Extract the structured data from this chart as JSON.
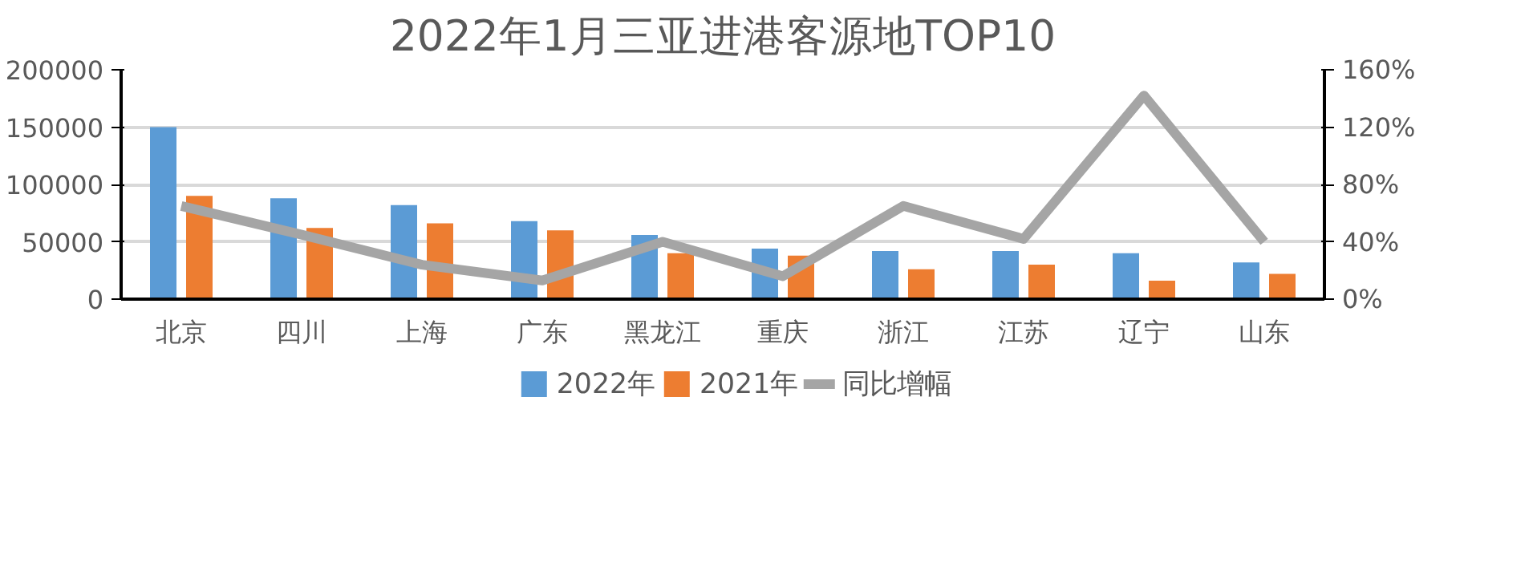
{
  "chart_data": {
    "type": "bar",
    "title": "2022年1月三亚进港客源地TOP10",
    "categories": [
      "北京",
      "四川",
      "上海",
      "广东",
      "黑龙江",
      "重庆",
      "浙江",
      "江苏",
      "辽宁",
      "山东"
    ],
    "series": [
      {
        "name": "2022年",
        "color": "#5b9bd5",
        "values": [
          150000,
          88000,
          82000,
          68000,
          56000,
          44000,
          42000,
          42000,
          40000,
          32000
        ]
      },
      {
        "name": "2021年",
        "color": "#ed7d31",
        "values": [
          90000,
          62000,
          66000,
          60000,
          40000,
          38000,
          26000,
          30000,
          16000,
          22000
        ]
      },
      {
        "name": "同比增幅",
        "color": "#a5a5a5",
        "type": "line",
        "axis": "y2",
        "values": [
          65,
          45,
          24,
          13,
          40,
          16,
          65,
          42,
          142,
          40
        ]
      }
    ],
    "ylim": [
      0,
      200000
    ],
    "yticks": [
      0,
      50000,
      100000,
      150000,
      200000
    ],
    "y2lim": [
      0,
      160
    ],
    "y2ticks": [
      {
        "value": 0,
        "label": "0%"
      },
      {
        "value": 40,
        "label": "40%"
      },
      {
        "value": 80,
        "label": "80%"
      },
      {
        "value": 120,
        "label": "120%"
      },
      {
        "value": 160,
        "label": "160%"
      }
    ],
    "grid": "y",
    "legend": "bottom"
  }
}
